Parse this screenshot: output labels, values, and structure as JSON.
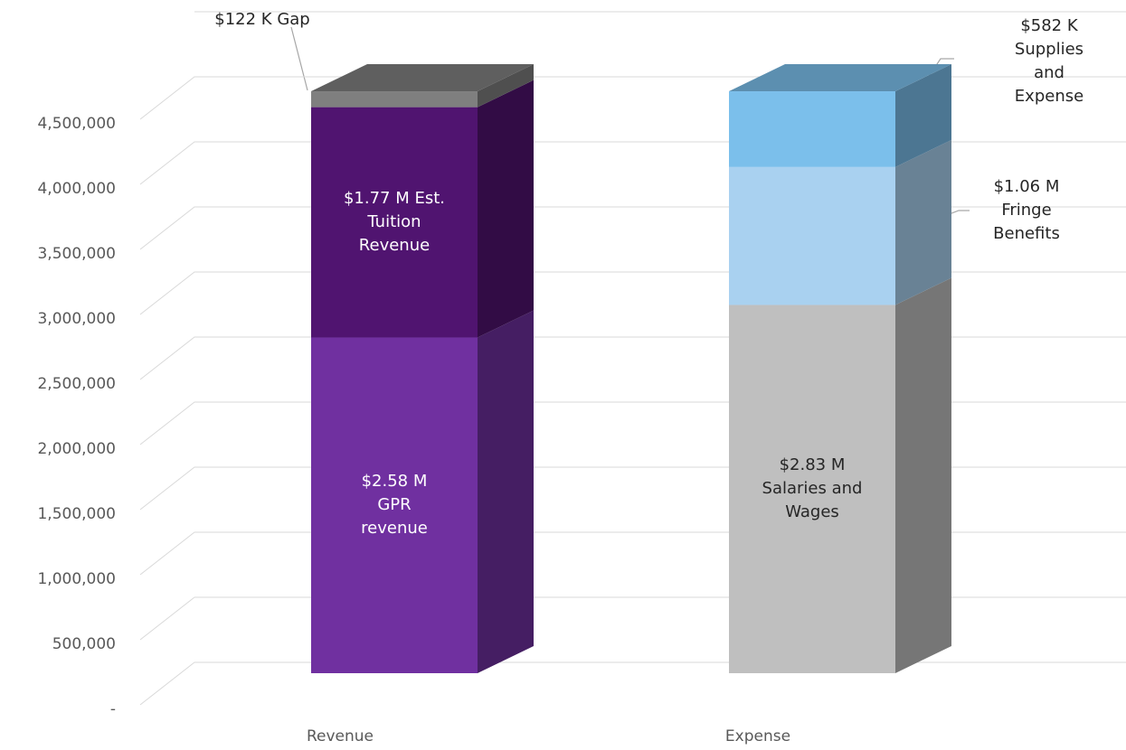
{
  "chart_data": {
    "type": "bar3d_stacked",
    "categories": [
      "Revenue",
      "Expense"
    ],
    "series": [
      {
        "color": "#7030a0",
        "values": [
          2580000,
          null
        ],
        "value_labels": [
          "$2.58 M\nGPR\nrevenue",
          null
        ]
      },
      {
        "color": "#501470",
        "values": [
          1770000,
          null
        ],
        "value_labels": [
          "$1.77 M Est.\nTuition\nRevenue",
          null
        ]
      },
      {
        "color": "#7f7f7f",
        "values": [
          122000,
          null
        ],
        "value_labels": [
          "$122 K Gap",
          null
        ]
      },
      {
        "color": "#bfbfbf",
        "values": [
          null,
          2830000
        ],
        "value_labels": [
          null,
          "$2.83 M\nSalaries and\nWages"
        ]
      },
      {
        "color": "#a9d1f0",
        "values": [
          null,
          1060000
        ],
        "value_labels": [
          null,
          "$1.06 M Fringe\nBenefits"
        ]
      },
      {
        "color": "#7bbfeb",
        "values": [
          null,
          582000
        ],
        "value_labels": [
          null,
          "$582 K\nSupplies and\nExpense"
        ]
      }
    ],
    "ylim": [
      0,
      5000000
    ],
    "yticks": [
      {
        "value": 0,
        "label": "-"
      },
      {
        "value": 500000,
        "label": "500,000"
      },
      {
        "value": 1000000,
        "label": "1,000,000"
      },
      {
        "value": 1500000,
        "label": "1,500,000"
      },
      {
        "value": 2000000,
        "label": "2,000,000"
      },
      {
        "value": 2500000,
        "label": "2,500,000"
      },
      {
        "value": 3000000,
        "label": "3,000,000"
      },
      {
        "value": 3500000,
        "label": "3,500,000"
      },
      {
        "value": 4000000,
        "label": "4,000,000"
      },
      {
        "value": 4500000,
        "label": "4,500,000"
      }
    ],
    "grid": true
  }
}
